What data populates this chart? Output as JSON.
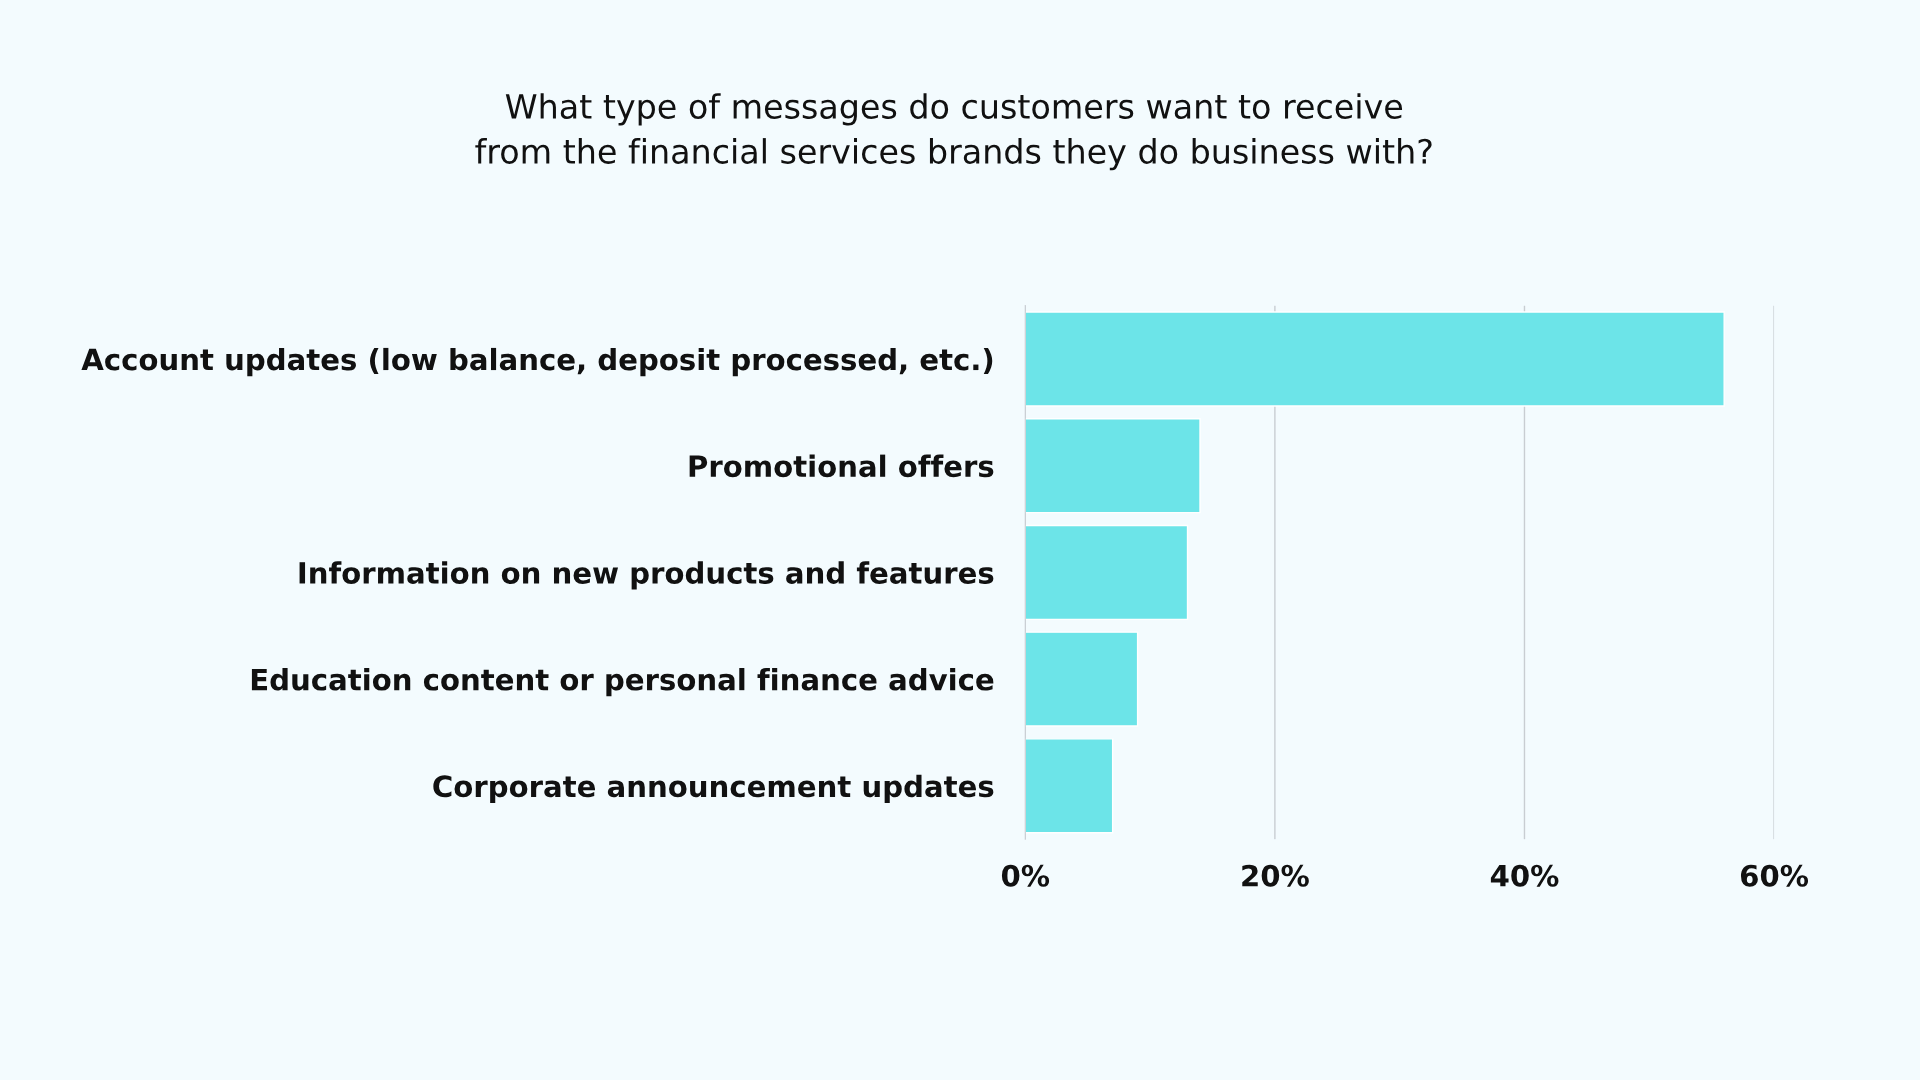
{
  "chart_data": {
    "type": "bar",
    "orientation": "horizontal",
    "title": "What type of messages do customers want to receive\nfrom the financial services brands they do business with?",
    "categories": [
      "Account updates (low balance, deposit processed, etc.)",
      "Promotional offers",
      "Information on new products and features",
      "Education content or personal finance advice",
      "Corporate announcement updates"
    ],
    "values": [
      56,
      14,
      13,
      9,
      7
    ],
    "color": "#6ce4e8",
    "xlim": [
      0,
      60
    ],
    "xticks": [
      {
        "value": 0,
        "label": "0%"
      },
      {
        "value": 20,
        "label": "20%"
      },
      {
        "value": 40,
        "label": "40%"
      },
      {
        "value": 60,
        "label": "60%"
      }
    ],
    "grid": "x"
  }
}
